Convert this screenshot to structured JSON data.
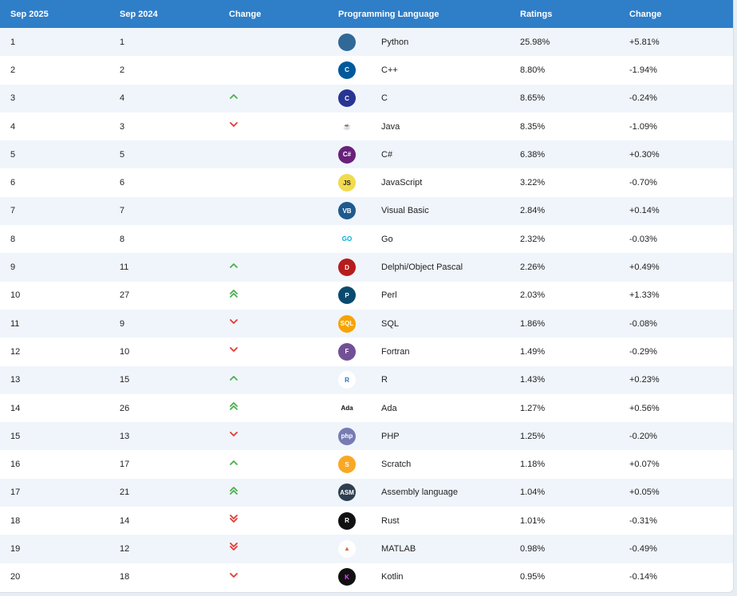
{
  "header": {
    "col_current": "Sep 2025",
    "col_previous": "Sep 2024",
    "col_change": "Change",
    "col_language": "Programming Language",
    "col_ratings": "Ratings",
    "col_ratings_change": "Change"
  },
  "rows": [
    {
      "rank": "1",
      "prev": "1",
      "trend": "none",
      "language": "Python",
      "rating": "25.98%",
      "change": "+5.81%",
      "icon": "python-icon",
      "badge": "",
      "bg": "#306998",
      "fg": "#ffd43b"
    },
    {
      "rank": "2",
      "prev": "2",
      "trend": "none",
      "language": "C++",
      "rating": "8.80%",
      "change": "-1.94%",
      "icon": "cpp-icon",
      "badge": "C",
      "bg": "#00599c",
      "fg": "#ffffff"
    },
    {
      "rank": "3",
      "prev": "4",
      "trend": "up",
      "language": "C",
      "rating": "8.65%",
      "change": "-0.24%",
      "icon": "c-icon",
      "badge": "C",
      "bg": "#283593",
      "fg": "#ffffff"
    },
    {
      "rank": "4",
      "prev": "3",
      "trend": "down",
      "language": "Java",
      "rating": "8.35%",
      "change": "-1.09%",
      "icon": "java-icon",
      "badge": "☕",
      "bg": "#ffffff",
      "fg": "#e76f00"
    },
    {
      "rank": "5",
      "prev": "5",
      "trend": "none",
      "language": "C#",
      "rating": "6.38%",
      "change": "+0.30%",
      "icon": "csharp-icon",
      "badge": "C#",
      "bg": "#68217a",
      "fg": "#ffffff"
    },
    {
      "rank": "6",
      "prev": "6",
      "trend": "none",
      "language": "JavaScript",
      "rating": "3.22%",
      "change": "-0.70%",
      "icon": "javascript-icon",
      "badge": "JS",
      "bg": "#f0db4f",
      "fg": "#222222"
    },
    {
      "rank": "7",
      "prev": "7",
      "trend": "none",
      "language": "Visual Basic",
      "rating": "2.84%",
      "change": "+0.14%",
      "icon": "visual-basic-icon",
      "badge": "VB",
      "bg": "#1f5a8f",
      "fg": "#ffffff"
    },
    {
      "rank": "8",
      "prev": "8",
      "trend": "none",
      "language": "Go",
      "rating": "2.32%",
      "change": "-0.03%",
      "icon": "go-icon",
      "badge": "GO",
      "bg": "#ffffff",
      "fg": "#00add8"
    },
    {
      "rank": "9",
      "prev": "11",
      "trend": "up",
      "language": "Delphi/Object Pascal",
      "rating": "2.26%",
      "change": "+0.49%",
      "icon": "delphi-icon",
      "badge": "D",
      "bg": "#b71c1c",
      "fg": "#ffffff"
    },
    {
      "rank": "10",
      "prev": "27",
      "trend": "up2",
      "language": "Perl",
      "rating": "2.03%",
      "change": "+1.33%",
      "icon": "perl-icon",
      "badge": "P",
      "bg": "#0b4a6e",
      "fg": "#ffffff"
    },
    {
      "rank": "11",
      "prev": "9",
      "trend": "down",
      "language": "SQL",
      "rating": "1.86%",
      "change": "-0.08%",
      "icon": "sql-icon",
      "badge": "SQL",
      "bg": "#f7a400",
      "fg": "#ffffff"
    },
    {
      "rank": "12",
      "prev": "10",
      "trend": "down",
      "language": "Fortran",
      "rating": "1.49%",
      "change": "-0.29%",
      "icon": "fortran-icon",
      "badge": "F",
      "bg": "#734f96",
      "fg": "#ffffff"
    },
    {
      "rank": "13",
      "prev": "15",
      "trend": "up",
      "language": "R",
      "rating": "1.43%",
      "change": "+0.23%",
      "icon": "r-icon",
      "badge": "R",
      "bg": "#ffffff",
      "fg": "#276dc3"
    },
    {
      "rank": "14",
      "prev": "26",
      "trend": "up2",
      "language": "Ada",
      "rating": "1.27%",
      "change": "+0.56%",
      "icon": "ada-icon",
      "badge": "Ada",
      "bg": "#ffffff",
      "fg": "#111111"
    },
    {
      "rank": "15",
      "prev": "13",
      "trend": "down",
      "language": "PHP",
      "rating": "1.25%",
      "change": "-0.20%",
      "icon": "php-icon",
      "badge": "php",
      "bg": "#777bb3",
      "fg": "#ffffff"
    },
    {
      "rank": "16",
      "prev": "17",
      "trend": "up",
      "language": "Scratch",
      "rating": "1.18%",
      "change": "+0.07%",
      "icon": "scratch-icon",
      "badge": "S",
      "bg": "#f9a825",
      "fg": "#ffffff"
    },
    {
      "rank": "17",
      "prev": "21",
      "trend": "up2",
      "language": "Assembly language",
      "rating": "1.04%",
      "change": "+0.05%",
      "icon": "assembly-icon",
      "badge": "ASM",
      "bg": "#2d3e50",
      "fg": "#ffffff"
    },
    {
      "rank": "18",
      "prev": "14",
      "trend": "down2",
      "language": "Rust",
      "rating": "1.01%",
      "change": "-0.31%",
      "icon": "rust-icon",
      "badge": "R",
      "bg": "#111111",
      "fg": "#ffffff"
    },
    {
      "rank": "19",
      "prev": "12",
      "trend": "down2",
      "language": "MATLAB",
      "rating": "0.98%",
      "change": "-0.49%",
      "icon": "matlab-icon",
      "badge": "▲",
      "bg": "#ffffff",
      "fg": "#e16737"
    },
    {
      "rank": "20",
      "prev": "18",
      "trend": "down",
      "language": "Kotlin",
      "rating": "0.95%",
      "change": "-0.14%",
      "icon": "kotlin-icon",
      "badge": "K",
      "bg": "#111111",
      "fg": "#e44cff"
    }
  ],
  "colors": {
    "header_bg": "#2f7ec8",
    "up": "#4caf50",
    "down": "#e53935"
  }
}
